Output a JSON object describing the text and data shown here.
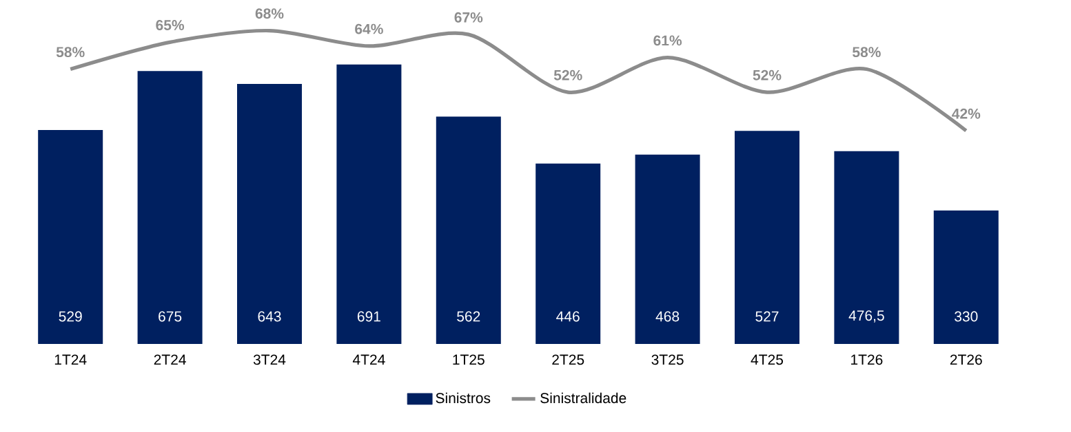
{
  "chart_data": {
    "type": "bar",
    "categories": [
      "1T24",
      "2T24",
      "3T24",
      "4T24",
      "1T25",
      "2T25",
      "3T25",
      "4T25",
      "1T26",
      "2T26"
    ],
    "legend": "bottom",
    "marker": "none",
    "series": [
      {
        "name": "Sinistros",
        "color": "#002060",
        "values": [
          529,
          675,
          643,
          691,
          562,
          446,
          468,
          527,
          476.5,
          330
        ],
        "value_labels": [
          "529",
          "675",
          "643",
          "691",
          "562",
          "446",
          "468",
          "527",
          "476,5",
          "330"
        ]
      },
      {
        "name": "Sinistralidade",
        "type": "line",
        "axis": "y2",
        "color": "#8c8c8c",
        "values": [
          58,
          65,
          68,
          64,
          67,
          52,
          61,
          52,
          58,
          42
        ],
        "value_labels": [
          "58%",
          "65%",
          "68%",
          "64%",
          "67%",
          "52%",
          "61%",
          "52%",
          "58%",
          "42%"
        ]
      }
    ]
  }
}
